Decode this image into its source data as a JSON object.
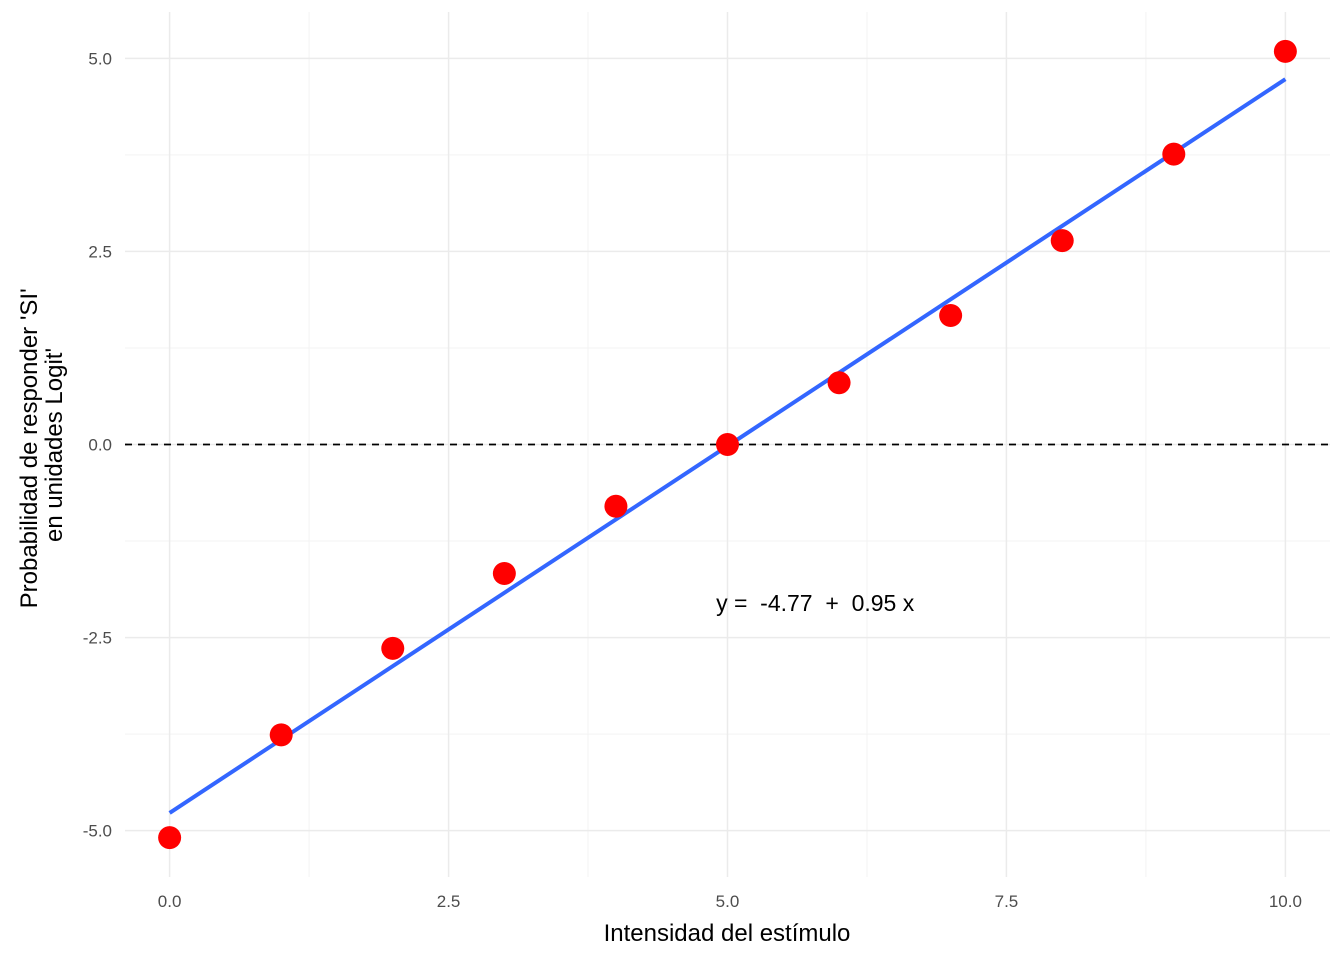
{
  "chart_data": {
    "type": "scatter",
    "xlabel": "Intensidad del estímulo",
    "ylabel_lines": [
      "Probabilidad de responder 'SI'",
      "en unidades Logit'"
    ],
    "xlim": [
      -0.4,
      10.4
    ],
    "ylim": [
      -5.6,
      5.6
    ],
    "x_ticks": [
      0.0,
      2.5,
      5.0,
      7.5,
      10.0
    ],
    "x_tick_labels": [
      "0.0",
      "2.5",
      "5.0",
      "7.5",
      "10.0"
    ],
    "y_ticks": [
      -5.0,
      -2.5,
      0.0,
      2.5,
      5.0
    ],
    "y_tick_labels": [
      "-5.0",
      "-2.5",
      "0.0",
      "2.5",
      "5.0"
    ],
    "grid": true,
    "points": {
      "x": [
        0,
        1,
        2,
        3,
        4,
        5,
        6,
        7,
        8,
        9,
        10
      ],
      "y": [
        -5.09,
        -3.76,
        -2.64,
        -1.67,
        -0.8,
        0.0,
        0.8,
        1.67,
        2.64,
        3.76,
        5.09
      ],
      "color": "#ff0000"
    },
    "fit_line": {
      "intercept": -4.77,
      "slope": 0.95,
      "x_range": [
        0,
        10
      ],
      "color": "#3366ff"
    },
    "reference_line": {
      "y": 0,
      "style": "dashed",
      "color": "#000000"
    },
    "annotation": {
      "text": "y =  -4.77  +  0.95 x",
      "x": 6.0,
      "y": -2.05
    }
  }
}
